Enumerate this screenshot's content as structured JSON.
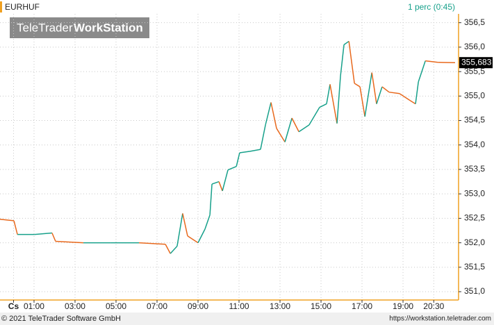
{
  "chart_data": {
    "type": "line",
    "symbol": "EURHUF",
    "interval": "1 perc (0:45)",
    "watermark": {
      "brand": "TeleTrader",
      "product": "WorkStation"
    },
    "x": [
      -0.66,
      0.02,
      0.19,
      1.03,
      1.88,
      2.05,
      3.41,
      4.76,
      6.12,
      7.41,
      7.65,
      7.98,
      8.25,
      8.49,
      9.0,
      9.34,
      9.58,
      9.68,
      10.02,
      10.19,
      10.46,
      10.87,
      11.03,
      11.54,
      12.05,
      12.29,
      12.56,
      12.83,
      13.24,
      13.58,
      13.92,
      14.42,
      14.93,
      15.27,
      15.44,
      15.78,
      15.95,
      16.12,
      16.36,
      16.63,
      16.9,
      17.14,
      17.48,
      17.71,
      17.98,
      18.32,
      18.83,
      19.34,
      19.61,
      19.75,
      20.09,
      20.7,
      21.54
    ],
    "values": [
      352.48,
      352.45,
      352.17,
      352.17,
      352.2,
      352.03,
      352.0,
      352.0,
      352.0,
      351.97,
      351.78,
      351.93,
      352.6,
      352.14,
      352.0,
      352.28,
      352.57,
      353.2,
      353.25,
      353.06,
      353.49,
      353.56,
      353.84,
      353.87,
      353.91,
      354.41,
      354.87,
      354.34,
      354.06,
      354.55,
      354.27,
      354.41,
      354.77,
      354.84,
      355.24,
      354.44,
      355.41,
      356.05,
      356.12,
      355.26,
      355.19,
      354.58,
      355.48,
      354.84,
      355.19,
      355.08,
      355.05,
      354.91,
      354.84,
      355.29,
      355.72,
      355.69,
      355.683
    ],
    "up_color": "#16a08a",
    "down_color": "#e8681c",
    "last_price": {
      "value": 355.683,
      "label": "355,683"
    },
    "xlim": [
      -0.66,
      21.71
    ],
    "xticks": [
      {
        "value": 0,
        "label": "Cs"
      },
      {
        "value": 1,
        "label": "01:00"
      },
      {
        "value": 3,
        "label": "03:00"
      },
      {
        "value": 5,
        "label": "05:00"
      },
      {
        "value": 7,
        "label": "07:00"
      },
      {
        "value": 9,
        "label": "09:00"
      },
      {
        "value": 11,
        "label": "11:00"
      },
      {
        "value": 13,
        "label": "13:00"
      },
      {
        "value": 15,
        "label": "15:00"
      },
      {
        "value": 17,
        "label": "17:00"
      },
      {
        "value": 19,
        "label": "19:00"
      },
      {
        "value": 20.5,
        "label": "20:30"
      }
    ],
    "ylim": [
      350.83,
      356.68
    ],
    "yticks": [
      {
        "value": 351.0,
        "label": "351,0"
      },
      {
        "value": 351.5,
        "label": "351,5"
      },
      {
        "value": 352.0,
        "label": "352,0"
      },
      {
        "value": 352.5,
        "label": "352,5"
      },
      {
        "value": 353.0,
        "label": "353,0"
      },
      {
        "value": 353.5,
        "label": "353,5"
      },
      {
        "value": 354.0,
        "label": "354,0"
      },
      {
        "value": 354.5,
        "label": "354,5"
      },
      {
        "value": 355.0,
        "label": "355,0"
      },
      {
        "value": 355.5,
        "label": "355,5"
      },
      {
        "value": 356.0,
        "label": "356,0"
      },
      {
        "value": 356.5,
        "label": "356,5"
      }
    ],
    "grid": true,
    "footer": {
      "copyright": "© 2021 TeleTrader Software GmbH",
      "url": "https://workstation.teletrader.com"
    }
  }
}
